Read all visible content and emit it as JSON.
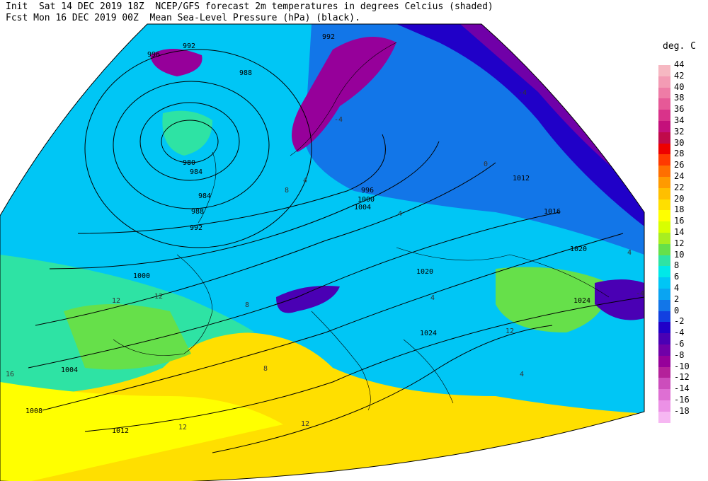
{
  "header": {
    "line1": "Init  Sat 14 DEC 2019 18Z  NCEP/GFS forecast 2m temperatures in degrees Celcius (shaded)",
    "line2": "Fcst Mon 16 DEC 2019 00Z  Mean Sea-Level Pressure (hPa) (black)."
  },
  "legend": {
    "title": "deg. C",
    "items": [
      {
        "label": "44",
        "color": "#f6b8c2"
      },
      {
        "label": "42",
        "color": "#f39bb4"
      },
      {
        "label": "40",
        "color": "#ee7ca6"
      },
      {
        "label": "38",
        "color": "#e65997"
      },
      {
        "label": "36",
        "color": "#d9338a"
      },
      {
        "label": "34",
        "color": "#c4107b"
      },
      {
        "label": "32",
        "color": "#c00a4a"
      },
      {
        "label": "30",
        "color": "#ee0000"
      },
      {
        "label": "28",
        "color": "#ff3a00"
      },
      {
        "label": "26",
        "color": "#ff6f00"
      },
      {
        "label": "24",
        "color": "#ff9a00"
      },
      {
        "label": "22",
        "color": "#ffbf00"
      },
      {
        "label": "20",
        "color": "#ffdf00"
      },
      {
        "label": "18",
        "color": "#ffff00"
      },
      {
        "label": "16",
        "color": "#d8ff00"
      },
      {
        "label": "14",
        "color": "#a8ee20"
      },
      {
        "label": "12",
        "color": "#66e04a"
      },
      {
        "label": "10",
        "color": "#2ee3a4"
      },
      {
        "label": "8",
        "color": "#00e8e8"
      },
      {
        "label": "6",
        "color": "#00c6f5"
      },
      {
        "label": "4",
        "color": "#0aa4f2"
      },
      {
        "label": "2",
        "color": "#1276e8"
      },
      {
        "label": "0",
        "color": "#1240e0"
      },
      {
        "label": "-2",
        "color": "#2000c8"
      },
      {
        "label": "-4",
        "color": "#4a00b4"
      },
      {
        "label": "-6",
        "color": "#7000a8"
      },
      {
        "label": "-8",
        "color": "#96009a"
      },
      {
        "label": "-10",
        "color": "#b4219a"
      },
      {
        "label": "-12",
        "color": "#cc4dbc"
      },
      {
        "label": "-14",
        "color": "#de6fd3"
      },
      {
        "label": "-16",
        "color": "#ec91e6"
      },
      {
        "label": "-18",
        "color": "#f6b7f2"
      }
    ]
  },
  "isobars": [
    "992",
    "996",
    "1000",
    "1000",
    "1004",
    "1004",
    "1008",
    "1012",
    "1012",
    "1016",
    "1020",
    "1020",
    "1024",
    "1024",
    "988",
    "984",
    "980",
    "984",
    "988",
    "992",
    "996",
    "992"
  ],
  "temp_labels": [
    "-4",
    "4",
    "-4",
    "4",
    "8",
    "12",
    "12",
    "12",
    "16",
    "4",
    "0",
    "8",
    "12",
    "-4",
    "4",
    "8",
    "4",
    "12"
  ]
}
